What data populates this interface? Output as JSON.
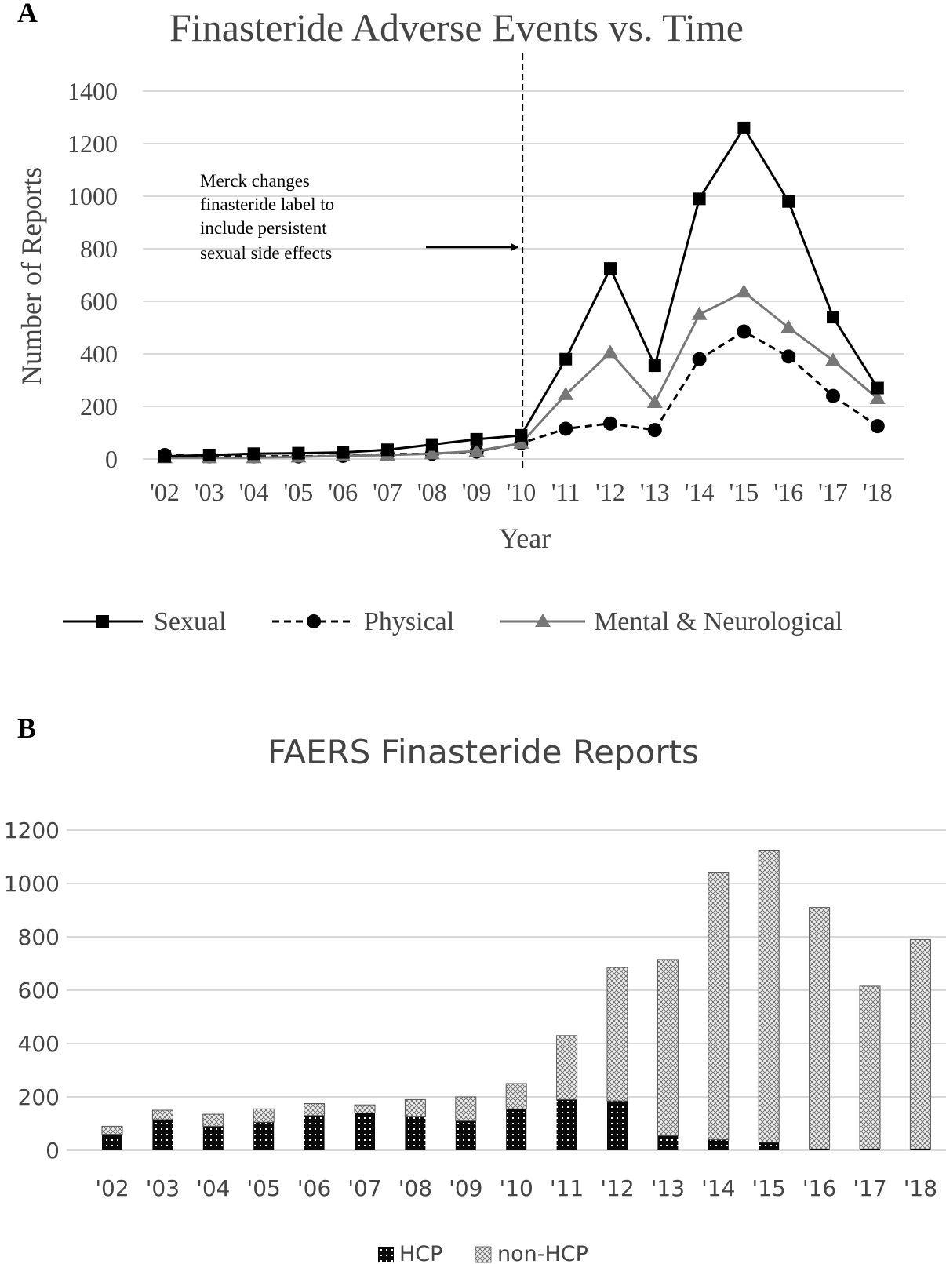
{
  "chart_data": [
    {
      "panel_label": "A",
      "type": "line",
      "title": "Finasteride Adverse Events vs. Time",
      "xlabel": "Year",
      "ylabel": "Number of Reports",
      "categories": [
        "'02",
        "'03",
        "'04",
        "'05",
        "'06",
        "'07",
        "'08",
        "'09",
        "'10",
        "'11",
        "'12",
        "'13",
        "'14",
        "'15",
        "'16",
        "'17",
        "'18"
      ],
      "ylim": [
        0,
        1400
      ],
      "yticks": [
        "0",
        "200",
        "400",
        "600",
        "800",
        "1000",
        "1200",
        "1400"
      ],
      "grid": true,
      "legend_position": "bottom",
      "series": [
        {
          "name": "Sexual",
          "color": "#000000",
          "dash": "solid",
          "marker": "square",
          "values": [
            10,
            15,
            20,
            22,
            25,
            35,
            55,
            75,
            90,
            380,
            725,
            355,
            990,
            1260,
            980,
            540,
            270
          ]
        },
        {
          "name": "Physical",
          "color": "#000000",
          "dash": "dashed",
          "marker": "circle",
          "values": [
            15,
            10,
            10,
            10,
            12,
            18,
            20,
            28,
            60,
            115,
            135,
            110,
            380,
            485,
            390,
            240,
            125
          ]
        },
        {
          "name": "Mental & Neurological",
          "color": "#777777",
          "dash": "solid",
          "marker": "triangle",
          "values": [
            5,
            5,
            5,
            8,
            12,
            15,
            20,
            30,
            60,
            245,
            405,
            215,
            550,
            635,
            500,
            375,
            230
          ]
        }
      ],
      "annotation": {
        "lines": [
          "Merck changes",
          "finasteride label to",
          "include persistent",
          "sexual side effects"
        ],
        "marker_category": "'10"
      }
    },
    {
      "panel_label": "B",
      "type": "bar",
      "stacked": true,
      "title": "FAERS Finasteride Reports",
      "categories": [
        "'02",
        "'03",
        "'04",
        "'05",
        "'06",
        "'07",
        "'08",
        "'09",
        "'10",
        "'11",
        "'12",
        "'13",
        "'14",
        "'15",
        "'16",
        "'17",
        "'18"
      ],
      "ylim": [
        0,
        1200
      ],
      "yticks": [
        "0",
        "200",
        "400",
        "600",
        "800",
        "1000",
        "1200"
      ],
      "grid": true,
      "legend_position": "bottom",
      "series": [
        {
          "name": "HCP",
          "pattern": "dark-dotted",
          "values": [
            60,
            115,
            90,
            105,
            130,
            140,
            125,
            110,
            155,
            190,
            185,
            55,
            40,
            30,
            5,
            5,
            5
          ]
        },
        {
          "name": "non-HCP",
          "pattern": "light-crosshatch",
          "values": [
            30,
            35,
            45,
            50,
            45,
            30,
            65,
            90,
            95,
            240,
            500,
            660,
            1000,
            1095,
            905,
            610,
            785
          ]
        }
      ]
    }
  ]
}
